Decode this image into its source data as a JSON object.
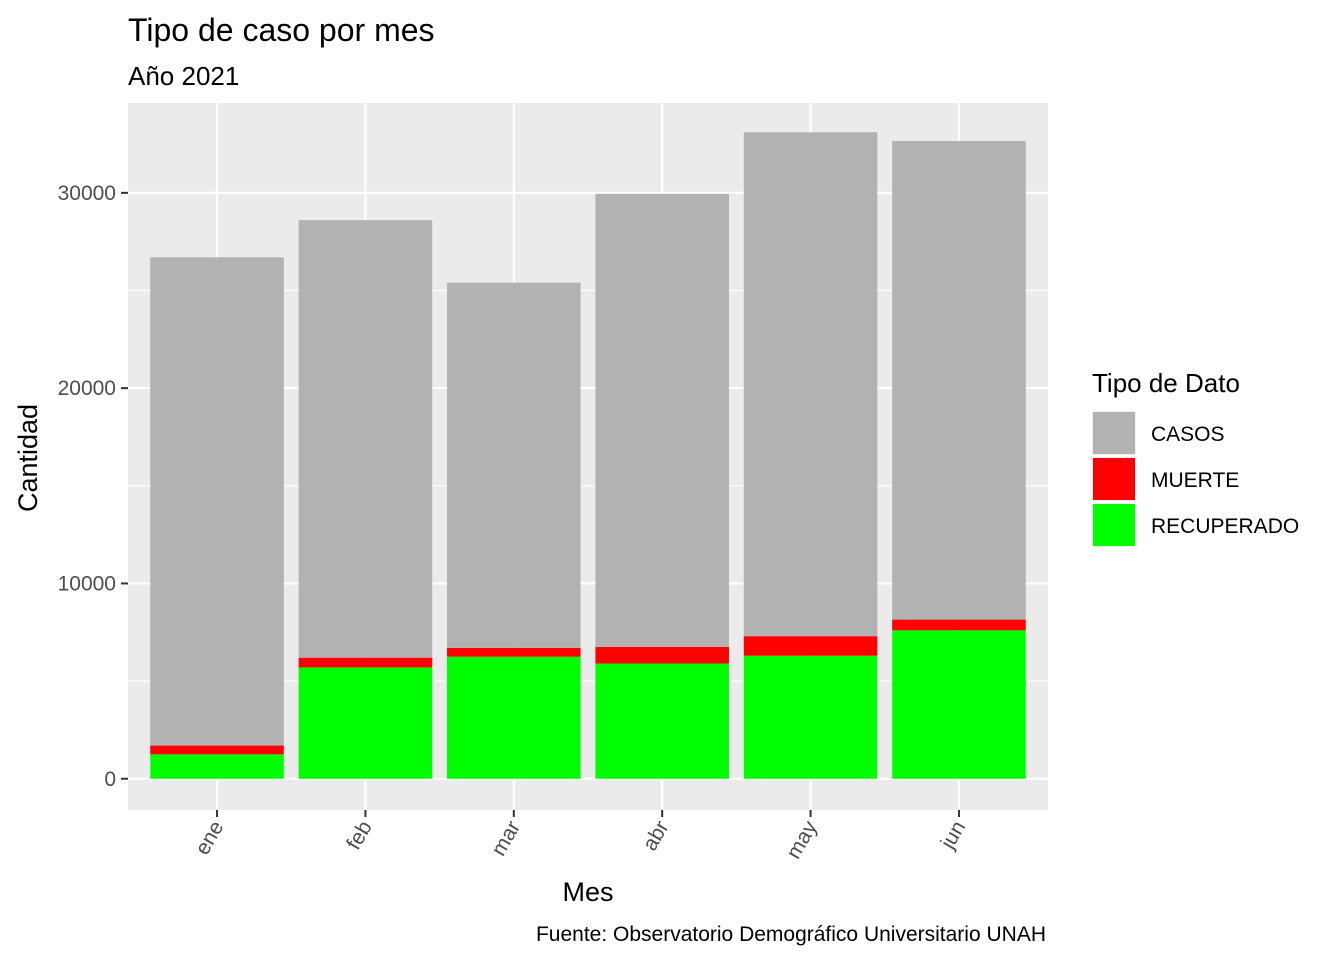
{
  "chart_data": {
    "type": "bar",
    "stacked": true,
    "title": "Tipo de caso por mes",
    "subtitle": "Año 2021",
    "xlabel": "Mes",
    "ylabel": "Cantidad",
    "caption": "Fuente: Observatorio Demográfico Universitario UNAH",
    "categories": [
      "ene",
      "feb",
      "mar",
      "abr",
      "may",
      "jun"
    ],
    "yticks": [
      0,
      10000,
      20000,
      30000
    ],
    "ylim": [
      -1600,
      34600
    ],
    "grid": true,
    "legend": {
      "title": "Tipo de Dato",
      "position": "right"
    },
    "series": [
      {
        "name": "RECUPERADO",
        "color": "#00ff00",
        "values": [
          1250,
          5700,
          6250,
          5900,
          6300,
          7600
        ]
      },
      {
        "name": "MUERTE",
        "color": "#ff0000",
        "values": [
          450,
          500,
          450,
          850,
          1000,
          550
        ]
      },
      {
        "name": "CASOS",
        "color": "#b2b2b2",
        "values": [
          25000,
          22400,
          18700,
          23200,
          25800,
          24500
        ]
      }
    ]
  }
}
